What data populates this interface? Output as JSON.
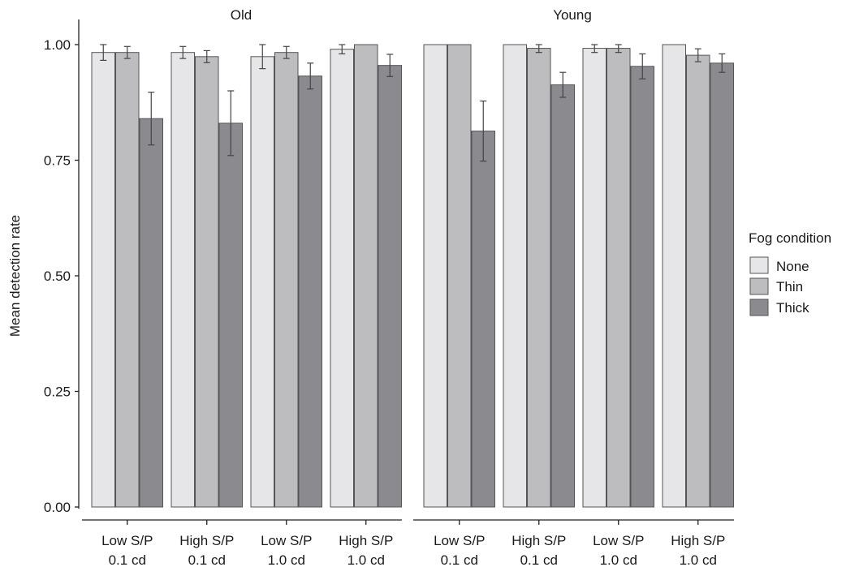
{
  "chart_data": {
    "type": "bar",
    "panels": [
      {
        "title": "Old",
        "categories": [
          "Low S/P\n0.1 cd",
          "High S/P\n0.1 cd",
          "Low S/P\n1.0 cd",
          "High S/P\n1.0 cd"
        ],
        "series": [
          {
            "name": "None",
            "values": [
              0.983,
              0.983,
              0.974,
              0.99
            ],
            "errors": [
              0.017,
              0.013,
              0.026,
              0.01
            ]
          },
          {
            "name": "Thin",
            "values": [
              0.983,
              0.974,
              0.983,
              1.0
            ],
            "errors": [
              0.013,
              0.013,
              0.013,
              0.0
            ]
          },
          {
            "name": "Thick",
            "values": [
              0.84,
              0.83,
              0.932,
              0.955
            ],
            "errors": [
              0.057,
              0.07,
              0.028,
              0.024
            ]
          }
        ]
      },
      {
        "title": "Young",
        "categories": [
          "Low S/P\n0.1 cd",
          "High S/P\n0.1 cd",
          "Low S/P\n1.0 cd",
          "High S/P\n1.0 cd"
        ],
        "series": [
          {
            "name": "None",
            "values": [
              1.0,
              1.0,
              0.992,
              1.0
            ],
            "errors": [
              0.0,
              0.0,
              0.009,
              0.0
            ]
          },
          {
            "name": "Thin",
            "values": [
              1.0,
              0.992,
              0.992,
              0.977
            ],
            "errors": [
              0.0,
              0.009,
              0.009,
              0.014
            ]
          },
          {
            "name": "Thick",
            "values": [
              0.813,
              0.913,
              0.953,
              0.96
            ],
            "errors": [
              0.065,
              0.027,
              0.027,
              0.02
            ]
          }
        ]
      }
    ],
    "ylabel": "Mean detection rate",
    "xlabel": "",
    "ylim": [
      0,
      1.0
    ],
    "yticks": [
      "0.00",
      "0.25",
      "0.50",
      "0.75",
      "1.00"
    ],
    "ytick_values": [
      0,
      0.25,
      0.5,
      0.75,
      1.0
    ],
    "grid": false,
    "legend": {
      "title": "Fog condition",
      "placement": "right",
      "entries": [
        "None",
        "Thin",
        "Thick"
      ]
    },
    "colors": {
      "None": "#e6e6e8",
      "Thin": "#bdbdc0",
      "Thick": "#8b8b8f"
    },
    "error_bars": true
  }
}
